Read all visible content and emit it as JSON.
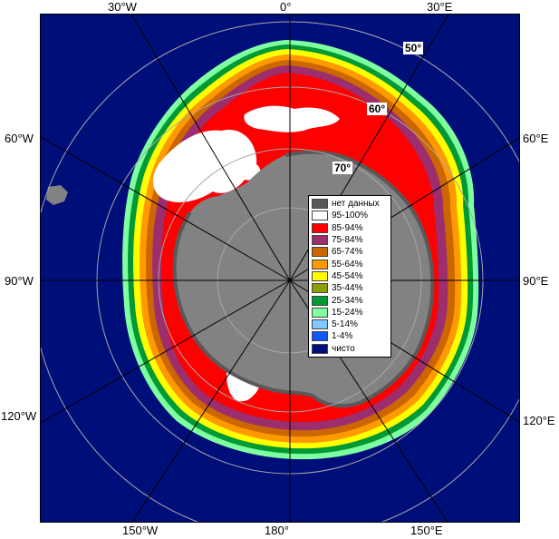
{
  "map": {
    "longitude_labels": {
      "top": [
        "30°W",
        "0°",
        "30°E"
      ],
      "bottom": [
        "150°W",
        "180°",
        "150°E"
      ],
      "left": [
        "60°W",
        "90°W",
        "120°W"
      ],
      "right": [
        "60°E",
        "90°E",
        "120°E"
      ]
    },
    "latitude_labels": [
      "50°",
      "60°",
      "70°"
    ],
    "colors": {
      "ocean": "#000e7a",
      "land": "#828282",
      "grid": "#a8a8a8",
      "frame": "#000000"
    }
  },
  "legend": {
    "items": [
      {
        "label": "нет данных",
        "color": "#595959"
      },
      {
        "label": "95-100%",
        "color": "#ffffff"
      },
      {
        "label": "85-94%",
        "color": "#ff0000"
      },
      {
        "label": "75-84%",
        "color": "#9c2e6e"
      },
      {
        "label": "65-74%",
        "color": "#cc6600"
      },
      {
        "label": "55-64%",
        "color": "#ff9900"
      },
      {
        "label": "45-54%",
        "color": "#ffff00"
      },
      {
        "label": "35-44%",
        "color": "#8c9e00"
      },
      {
        "label": "25-34%",
        "color": "#009933"
      },
      {
        "label": "15-24%",
        "color": "#80ffa0"
      },
      {
        "label": "5-14%",
        "color": "#80c8ff"
      },
      {
        "label": "1-4%",
        "color": "#0a5aff"
      },
      {
        "label": "чисто",
        "color": "#000e7a"
      }
    ]
  }
}
